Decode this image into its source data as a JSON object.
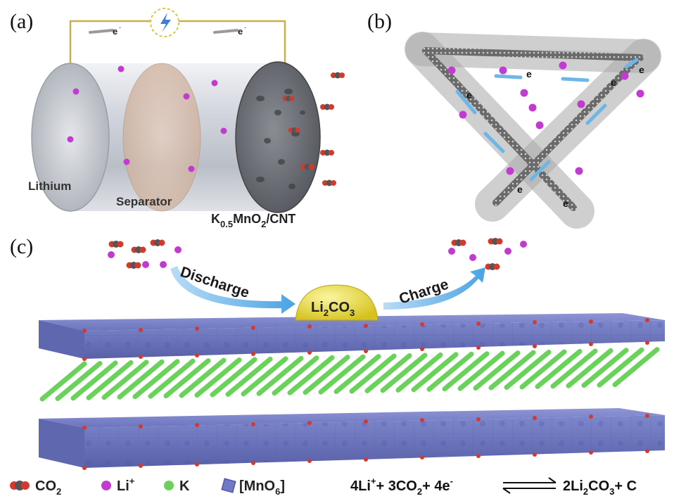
{
  "panels": {
    "a": "(a)",
    "b": "(b)",
    "c": "(c)"
  },
  "panel_a": {
    "electron_left": "e",
    "electron_right": "e",
    "lithium": "Lithium",
    "separator": "Separator",
    "cathode": {
      "k": "K",
      "k_sub": "0.5",
      "mn": "MnO",
      "o_sub": "2",
      "rest": "/CNT"
    },
    "power_icon": "lightning-bolt"
  },
  "panel_b": {
    "electron": "e"
  },
  "panel_c": {
    "discharge": "Discharge",
    "charge": "Charge",
    "product": {
      "li": "Li",
      "sub1": "2",
      "co": "CO",
      "sub2": "3"
    }
  },
  "legend": {
    "co2": {
      "main": "CO",
      "sub": "2"
    },
    "li": {
      "main": "Li",
      "sup": "+"
    },
    "k": "K",
    "mno6": {
      "main": "[MnO",
      "sub": "6",
      "end": "]"
    }
  },
  "equation": {
    "t1": "4Li",
    "s1": "+",
    "t2": "+ 3CO",
    "s2": "2",
    "t3": "+ 4e",
    "s3": "-",
    "t4": "2Li",
    "s4": "2",
    "t5": "CO",
    "s5": "3",
    "t6": "+ C"
  },
  "colors": {
    "li": "#c23bd1",
    "co2_o": "#d23a2e",
    "co2_c": "#555555",
    "k": "#6ad25a",
    "mno6": "#7079c4",
    "li2co3": "#efe24a",
    "arrow": "#6fb6e8",
    "wire": "#c9b04a"
  }
}
